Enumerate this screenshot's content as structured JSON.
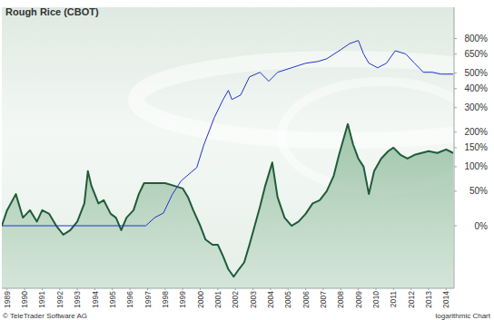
{
  "chart_data": {
    "type": "line",
    "title": "Rough Rice (CBOT)",
    "annotations": [
      "© TeleTrader Software AG",
      "logarithmic Chart"
    ],
    "log": "y",
    "grid": false,
    "xlim": [
      1988.7,
      2014.45
    ],
    "xticks": [
      1989,
      1990,
      1991,
      1992,
      1993,
      1994,
      1995,
      1996,
      1997,
      1998,
      1999,
      2000,
      2001,
      2002,
      2003,
      2004,
      2005,
      2006,
      2007,
      2008,
      2009,
      2010,
      2011,
      2012,
      2013,
      2014
    ],
    "ylim": [
      -52,
      1200
    ],
    "yticks": [
      {
        "value": 800,
        "label": "800%"
      },
      {
        "value": 650,
        "label": "650%"
      },
      {
        "value": 500,
        "label": "500%"
      },
      {
        "value": 400,
        "label": "400%"
      },
      {
        "value": 300,
        "label": "300%"
      },
      {
        "value": 200,
        "label": "200%"
      },
      {
        "value": 150,
        "label": "150%"
      },
      {
        "value": 100,
        "label": "100%"
      },
      {
        "value": 50,
        "label": "50%"
      },
      {
        "value": 0,
        "label": "0%"
      }
    ],
    "series": [
      {
        "type": "area",
        "color": "#1f5c38",
        "x": [
          1988.7,
          1989.0,
          1989.5,
          1989.9,
          1990.3,
          1990.7,
          1991.0,
          1991.4,
          1991.8,
          1992.2,
          1992.6,
          1993.0,
          1993.4,
          1993.6,
          1993.8,
          1994.2,
          1994.5,
          1994.9,
          1995.2,
          1995.5,
          1995.8,
          1996.2,
          1996.5,
          1996.8,
          1997.3,
          1998.0,
          1998.5,
          1999.0,
          1999.3,
          1999.6,
          2000.0,
          2000.3,
          2000.7,
          2001.0,
          2001.3,
          2001.6,
          2001.9,
          2002.2,
          2002.5,
          2002.8,
          2003.1,
          2003.4,
          2003.7,
          2004.1,
          2004.4,
          2004.8,
          2005.2,
          2005.6,
          2006.0,
          2006.4,
          2006.8,
          2007.2,
          2007.6,
          2007.9,
          2008.4,
          2008.7,
          2009.0,
          2009.3,
          2009.6,
          2009.9,
          2010.3,
          2010.7,
          2011.0,
          2011.4,
          2011.8,
          2012.2,
          2012.6,
          2013.0,
          2013.5,
          2014.0,
          2014.4
        ],
        "values": [
          0,
          20,
          45,
          10,
          20,
          5,
          20,
          15,
          0,
          -10,
          -5,
          5,
          30,
          90,
          60,
          30,
          35,
          15,
          10,
          -5,
          10,
          20,
          45,
          65,
          65,
          65,
          60,
          55,
          40,
          20,
          0,
          -15,
          -20,
          -20,
          -30,
          -40,
          -45,
          -40,
          -35,
          -20,
          0,
          25,
          60,
          110,
          40,
          10,
          0,
          5,
          15,
          30,
          35,
          50,
          80,
          130,
          230,
          160,
          120,
          100,
          45,
          90,
          120,
          140,
          150,
          130,
          120,
          130,
          135,
          140,
          135,
          145,
          135
        ]
      },
      {
        "type": "line",
        "color": "#2233cc",
        "x": [
          1988.7,
          1996.4,
          1996.9,
          1997.4,
          1997.9,
          1998.4,
          1998.9,
          1999.5,
          1999.8,
          2000.2,
          2000.8,
          2001.3,
          2001.6,
          2001.8,
          2002.3,
          2002.8,
          2003.4,
          2003.9,
          2004.4,
          2005.2,
          2006.0,
          2006.7,
          2007.2,
          2008.0,
          2008.5,
          2009.0,
          2009.3,
          2009.6,
          2010.1,
          2010.6,
          2011.1,
          2011.7,
          2012.2,
          2012.7,
          2013.2,
          2013.7,
          2014.4
        ],
        "values": [
          0,
          0,
          0,
          10,
          16,
          44,
          69,
          88,
          98,
          158,
          256,
          340,
          390,
          340,
          364,
          474,
          506,
          445,
          506,
          539,
          574,
          588,
          610,
          690,
          748,
          780,
          651,
          574,
          539,
          574,
          680,
          651,
          574,
          506,
          506,
          493,
          493
        ]
      }
    ]
  }
}
